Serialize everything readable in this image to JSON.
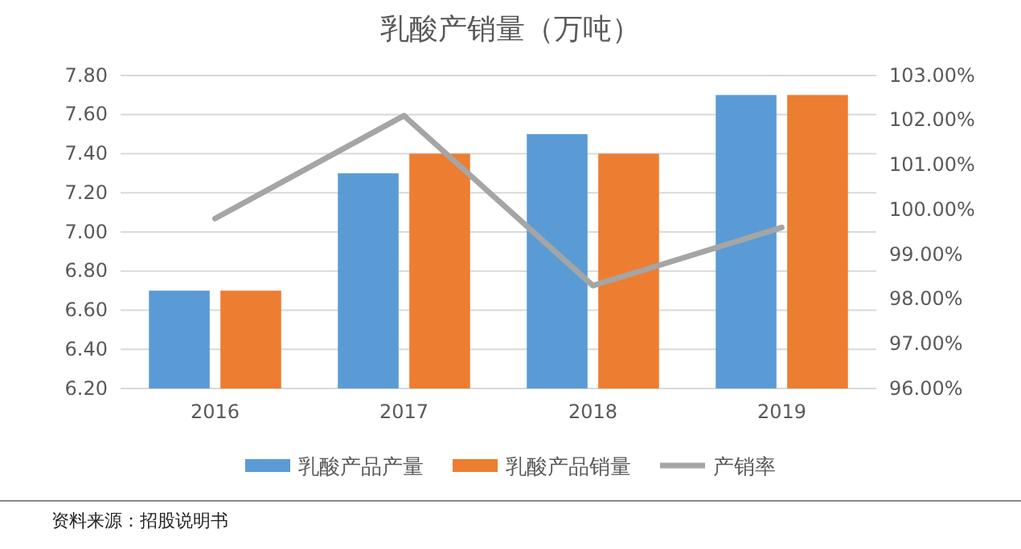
{
  "chart_data": {
    "type": "bar",
    "title": "乳酸产销量（万吨）",
    "categories": [
      "2016",
      "2017",
      "2018",
      "2019"
    ],
    "series": [
      {
        "name": "乳酸产品产量",
        "color": "#5b9bd5",
        "values": [
          6.7,
          7.3,
          7.5,
          7.7
        ]
      },
      {
        "name": "乳酸产品销量",
        "color": "#ed7d31",
        "values": [
          6.7,
          7.4,
          7.4,
          7.7
        ]
      },
      {
        "name": "产销率",
        "type": "line",
        "axis": "y2",
        "color": "#a5a5a5",
        "values": [
          99.8,
          102.1,
          98.3,
          99.6
        ]
      }
    ],
    "ylim": [
      6.2,
      7.8
    ],
    "yticks": [
      {
        "value": 6.2,
        "label": "6.20"
      },
      {
        "value": 6.4,
        "label": "6.40"
      },
      {
        "value": 6.6,
        "label": "6.60"
      },
      {
        "value": 6.8,
        "label": "6.80"
      },
      {
        "value": 7.0,
        "label": "7.00"
      },
      {
        "value": 7.2,
        "label": "7.20"
      },
      {
        "value": 7.4,
        "label": "7.40"
      },
      {
        "value": 7.6,
        "label": "7.60"
      },
      {
        "value": 7.8,
        "label": "7.80"
      }
    ],
    "y2lim": [
      96,
      103
    ],
    "y2ticks": [
      {
        "value": 96,
        "label": "96.00%"
      },
      {
        "value": 97,
        "label": "97.00%"
      },
      {
        "value": 98,
        "label": "98.00%"
      },
      {
        "value": 99,
        "label": "99.00%"
      },
      {
        "value": 100,
        "label": "100.00%"
      },
      {
        "value": 101,
        "label": "101.00%"
      },
      {
        "value": 102,
        "label": "102.00%"
      },
      {
        "value": 103,
        "label": "103.00%"
      }
    ],
    "grid": "y",
    "legend": "bottom",
    "annotations": [
      "资料来源：招股说明书"
    ]
  }
}
